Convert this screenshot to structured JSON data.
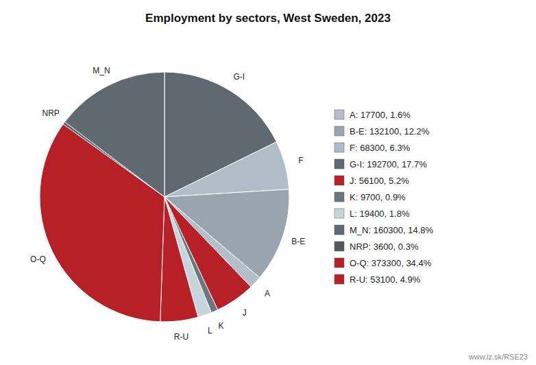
{
  "chart_data": {
    "type": "pie",
    "title": "Employment by sectors, West Sweden, 2023",
    "categories": [
      "G-I",
      "F",
      "B-E",
      "A",
      "J",
      "K",
      "L",
      "R-U",
      "O-Q",
      "NRP",
      "M_N"
    ],
    "values": [
      192700,
      68300,
      132100,
      17700,
      56100,
      9700,
      19400,
      53100,
      373300,
      3600,
      160300
    ],
    "colors": [
      "#606870",
      "#b0bcc8",
      "#9aa4ae",
      "#b4bec8",
      "#b82028",
      "#6c7880",
      "#c8d4dc",
      "#b82028",
      "#b82028",
      "#505860",
      "#606870"
    ],
    "legend": "right",
    "legend_labels": [
      "A: 17700, 1.6%",
      "B-E: 132100, 12.2%",
      "F: 68300, 6.3%",
      "G-I: 192700, 17.7%",
      "J: 56100, 5.2%",
      "K: 9700, 0.9%",
      "L: 19400, 1.8%",
      "M_N: 160300, 14.8%",
      "NRP: 3600, 0.3%",
      "O-Q: 373300, 34.4%",
      "R-U: 53100, 4.9%"
    ],
    "legend_colors": [
      "#b4bec8",
      "#9aa4ae",
      "#b0bcc8",
      "#606870",
      "#b82028",
      "#6c7880",
      "#c8d4dc",
      "#606870",
      "#505860",
      "#b82028",
      "#b82028"
    ],
    "annotations": [
      "www.iz.sk/RSE23"
    ]
  }
}
